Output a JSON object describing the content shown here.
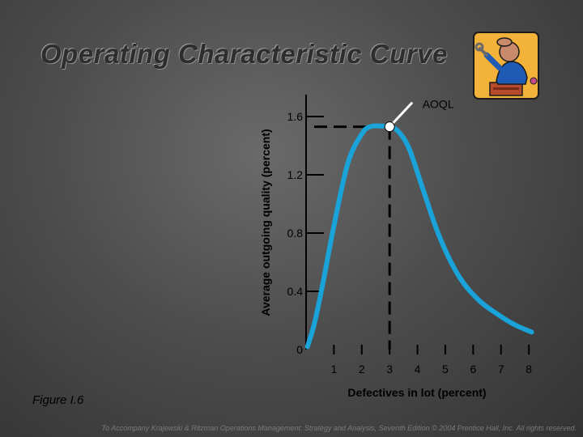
{
  "slide": {
    "title": "Operating Characteristic Curve",
    "figure_label": "Figure I.6",
    "footer": "To Accompany Krajewski & Ritzman Operations Management: Strategy and Analysis, Seventh Edition © 2004 Prentice Hall, Inc. All rights reserved."
  },
  "clipart": {
    "icon": "worker-with-wrench-icon"
  },
  "colors": {
    "curve": "#1aa3d8",
    "axis": "#000000",
    "guide": "#000000",
    "marker": "#ffffff"
  },
  "chart_data": {
    "type": "line",
    "title": "",
    "xlabel": "Defectives in lot (percent)",
    "ylabel": "Average outgoing quality (percent)",
    "xlim": [
      0,
      8.2
    ],
    "ylim": [
      0,
      1.75
    ],
    "xticks": [
      1,
      2,
      3,
      4,
      5,
      6,
      7,
      8
    ],
    "yticks": [
      0,
      0.4,
      0.8,
      1.2,
      1.6
    ],
    "ytick_labels": [
      "0",
      "0.4",
      "0.8",
      "1.2",
      "1.6"
    ],
    "grid": false,
    "series": [
      {
        "name": "",
        "x": [
          0.05,
          0.3,
          0.6,
          1.0,
          1.5,
          2.0,
          2.3,
          2.7,
          3.0,
          3.3,
          3.7,
          4.2,
          4.8,
          5.5,
          6.2,
          6.9,
          7.5,
          8.1
        ],
        "y": [
          0.02,
          0.18,
          0.45,
          0.85,
          1.28,
          1.48,
          1.53,
          1.535,
          1.53,
          1.5,
          1.38,
          1.1,
          0.77,
          0.5,
          0.34,
          0.24,
          0.17,
          0.12
        ]
      }
    ],
    "annotations": [
      {
        "label": "AOQL",
        "x": 3.0,
        "y": 1.53
      }
    ]
  }
}
